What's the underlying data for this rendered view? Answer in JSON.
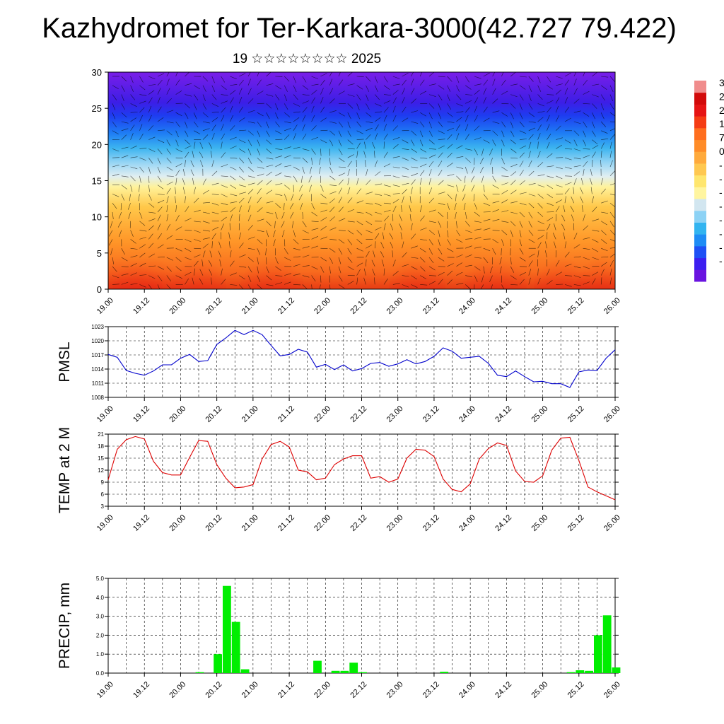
{
  "header": {
    "title": "Kazhydromet for Ter-Karkara-3000(42.727 79.422)",
    "subtitle": "19 ☆☆☆☆☆☆☆☆ 2025"
  },
  "time_ticks": [
    "19.00",
    "19.12",
    "20.00",
    "20.12",
    "21.00",
    "21.12",
    "22.00",
    "22.12",
    "23.00",
    "23.12",
    "24.00",
    "24.12",
    "25.00",
    "25.12",
    "26.00"
  ],
  "colorbar": {
    "colors": [
      "#6a14e0",
      "#3c1ef0",
      "#1e50f5",
      "#1e8cf5",
      "#32b4f0",
      "#8cd2f5",
      "#d2e6f0",
      "#fff5a0",
      "#ffe66e",
      "#ffc850",
      "#ffaa3c",
      "#ff8c28",
      "#ff6e1e",
      "#f53c14",
      "#e61414",
      "#d20a0a",
      "#f08c8c"
    ],
    "labels": [
      "3",
      "2",
      "2",
      "1",
      "7",
      "0",
      "-",
      "-",
      "-",
      "-",
      "-",
      "-",
      "-",
      "-"
    ]
  },
  "chart_data": [
    {
      "type": "heatmap",
      "title": "",
      "xlabel": "",
      "ylabel": "",
      "x_ticks": [
        "19.00",
        "19.12",
        "20.00",
        "20.12",
        "21.00",
        "21.12",
        "22.00",
        "22.12",
        "23.00",
        "23.12",
        "24.00",
        "24.12",
        "25.00",
        "25.12",
        "26.00"
      ],
      "y_ticks": [
        0,
        5,
        10,
        15,
        20,
        25,
        30
      ],
      "ylim": [
        0,
        30
      ],
      "description_of_field": "temperature cross-section with wind barbs, warm (red/orange) near surface, cold (blue/purple) aloft"
    },
    {
      "type": "line",
      "ylabel": "PMSL",
      "ylim": [
        1008,
        1023
      ],
      "y_ticks": [
        1008,
        1011,
        1014,
        1017,
        1020,
        1023
      ],
      "color": "#0000cc",
      "x_ticks": [
        "19.00",
        "19.12",
        "20.00",
        "20.12",
        "21.00",
        "21.12",
        "22.00",
        "22.12",
        "23.00",
        "23.12",
        "24.00",
        "24.12",
        "25.00",
        "25.12",
        "26.00"
      ],
      "x_hours": [
        0,
        3,
        6,
        9,
        12,
        15,
        18,
        21,
        24,
        27,
        30,
        33,
        36,
        39,
        42,
        45,
        48,
        51,
        54,
        57,
        60,
        63,
        66,
        69,
        72,
        75,
        78,
        81,
        84,
        87,
        90,
        93,
        96,
        99,
        102,
        105,
        108,
        111,
        114,
        117,
        120,
        123,
        126,
        129,
        132,
        135,
        138,
        141,
        144,
        147,
        150,
        153,
        156,
        159,
        162,
        165,
        168
      ],
      "values": [
        1017.1,
        1016.5,
        1013.7,
        1013.1,
        1012.7,
        1013.6,
        1014.9,
        1014.9,
        1016.3,
        1017.1,
        1015.6,
        1015.8,
        1019.2,
        1020.6,
        1022.2,
        1021.3,
        1022.2,
        1021.3,
        1019.0,
        1016.8,
        1017.1,
        1018.2,
        1017.6,
        1014.4,
        1015.0,
        1013.9,
        1014.9,
        1013.6,
        1014.1,
        1015.2,
        1015.4,
        1014.6,
        1015.1,
        1016.0,
        1015.1,
        1015.6,
        1016.7,
        1018.5,
        1017.8,
        1016.3,
        1016.5,
        1016.7,
        1015.2,
        1012.7,
        1012.4,
        1013.6,
        1012.4,
        1011.3,
        1011.4,
        1010.9,
        1010.9,
        1010.1,
        1013.4,
        1013.8,
        1013.7,
        1016.3,
        1018.1
      ]
    },
    {
      "type": "line",
      "ylabel": "TEMP at 2 M",
      "ylim": [
        3,
        21
      ],
      "y_ticks": [
        3,
        6,
        9,
        12,
        15,
        18,
        21
      ],
      "color": "#dd0000",
      "x_ticks": [
        "19.00",
        "19.12",
        "20.00",
        "20.12",
        "21.00",
        "21.12",
        "22.00",
        "22.12",
        "23.00",
        "23.12",
        "24.00",
        "24.12",
        "25.00",
        "25.12",
        "26.00"
      ],
      "x_hours": [
        0,
        3,
        6,
        9,
        12,
        15,
        18,
        21,
        24,
        27,
        30,
        33,
        36,
        39,
        42,
        45,
        48,
        51,
        54,
        57,
        60,
        63,
        66,
        69,
        72,
        75,
        78,
        81,
        84,
        87,
        90,
        93,
        96,
        99,
        102,
        105,
        108,
        111,
        114,
        117,
        120,
        123,
        126,
        129,
        132,
        135,
        138,
        141,
        144,
        147,
        150,
        153,
        156,
        159,
        162,
        165,
        168
      ],
      "values": [
        9.6,
        17.2,
        19.6,
        20.4,
        19.8,
        14.2,
        11.4,
        10.8,
        10.8,
        15.2,
        19.4,
        19.2,
        13.4,
        10.0,
        7.6,
        7.8,
        8.4,
        14.8,
        18.4,
        19.2,
        17.8,
        12.0,
        11.6,
        9.6,
        10.0,
        13.4,
        14.8,
        15.6,
        15.6,
        10.0,
        10.4,
        9.0,
        9.8,
        15.0,
        17.2,
        17.0,
        15.4,
        9.8,
        7.2,
        6.6,
        8.6,
        14.8,
        17.4,
        18.8,
        18.2,
        11.8,
        9.2,
        9.0,
        10.6,
        17.0,
        20.0,
        20.2,
        14.4,
        7.8,
        6.6,
        5.6,
        4.6
      ]
    },
    {
      "type": "bar",
      "ylabel": "PRECIP, mm",
      "ylim": [
        0,
        5
      ],
      "y_ticks": [
        "0.0",
        "1.0",
        "2.0",
        "3.0",
        "4.0",
        "5.0"
      ],
      "color": "#00ee00",
      "x_ticks": [
        "19.00",
        "19.12",
        "20.00",
        "20.12",
        "21.00",
        "21.12",
        "22.00",
        "22.12",
        "23.00",
        "23.12",
        "24.00",
        "24.12",
        "25.00",
        "25.12",
        "26.00"
      ],
      "bars": [
        {
          "x_hour": 30,
          "value": 0.05
        },
        {
          "x_hour": 36,
          "value": 1.0
        },
        {
          "x_hour": 39,
          "value": 4.6
        },
        {
          "x_hour": 42,
          "value": 2.7
        },
        {
          "x_hour": 45,
          "value": 0.2
        },
        {
          "x_hour": 69,
          "value": 0.65
        },
        {
          "x_hour": 75,
          "value": 0.12
        },
        {
          "x_hour": 78,
          "value": 0.12
        },
        {
          "x_hour": 81,
          "value": 0.55
        },
        {
          "x_hour": 84,
          "value": 0.05
        },
        {
          "x_hour": 111,
          "value": 0.07
        },
        {
          "x_hour": 153,
          "value": 0.05
        },
        {
          "x_hour": 156,
          "value": 0.15
        },
        {
          "x_hour": 159,
          "value": 0.12
        },
        {
          "x_hour": 162,
          "value": 2.0
        },
        {
          "x_hour": 165,
          "value": 3.05
        },
        {
          "x_hour": 168,
          "value": 0.3
        }
      ]
    }
  ]
}
